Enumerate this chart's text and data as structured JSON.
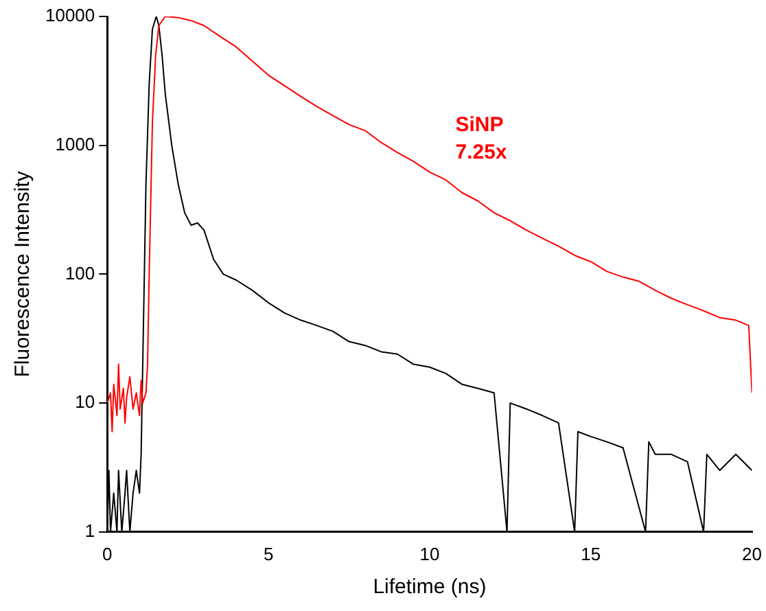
{
  "chart_data": {
    "type": "line",
    "xlabel": "Lifetime (ns)",
    "ylabel": "Fluorescence Intensity",
    "log": "y",
    "xlim": [
      0,
      20
    ],
    "xticks": [
      0,
      5,
      10,
      15,
      20
    ],
    "ylim": [
      1,
      10000
    ],
    "yticks": [
      1,
      10,
      100,
      1000,
      10000
    ],
    "grid": false,
    "legend": false,
    "marker": "none",
    "line_style": "solid",
    "series": [
      {
        "name": "SiNP 7.25x",
        "color": "#ff0000",
        "x": [
          0,
          0.1,
          0.15,
          0.2,
          0.3,
          0.35,
          0.4,
          0.5,
          0.55,
          0.6,
          0.7,
          0.8,
          0.9,
          1.0,
          1.05,
          1.1,
          1.2,
          1.25,
          1.3,
          1.4,
          1.5,
          1.6,
          1.8,
          2.2,
          2.6,
          3,
          3.5,
          4,
          4.5,
          5,
          5.5,
          6,
          6.5,
          7,
          7.5,
          8,
          8.5,
          9,
          9.5,
          10,
          10.5,
          11,
          11.5,
          12,
          12.5,
          13,
          13.5,
          14,
          14.5,
          15,
          15.5,
          16,
          16.5,
          17,
          17.5,
          18,
          18.5,
          19,
          19.5,
          19.9,
          20
        ],
        "values": [
          10,
          12,
          6,
          14,
          8,
          20,
          9,
          13,
          7,
          11,
          16,
          9,
          12,
          8,
          15,
          10,
          12,
          20,
          100,
          1500,
          5000,
          8500,
          10000,
          9800,
          9300,
          8500,
          7000,
          5800,
          4500,
          3500,
          2900,
          2400,
          2000,
          1700,
          1450,
          1300,
          1050,
          880,
          750,
          620,
          540,
          430,
          370,
          300,
          260,
          220,
          190,
          165,
          140,
          125,
          105,
          95,
          88,
          75,
          65,
          58,
          52,
          46,
          44,
          40,
          12
        ]
      },
      {
        "color": "#000000",
        "x": [
          0,
          0.05,
          0.1,
          0.2,
          0.3,
          0.35,
          0.45,
          0.55,
          0.6,
          0.7,
          0.8,
          0.9,
          1.0,
          1.05,
          1.1,
          1.2,
          1.3,
          1.4,
          1.52,
          1.6,
          1.7,
          1.8,
          2.0,
          2.2,
          2.4,
          2.6,
          2.8,
          3.0,
          3.3,
          3.6,
          4,
          4.5,
          5,
          5.5,
          6,
          6.5,
          7,
          7.5,
          8,
          8.5,
          9,
          9.5,
          10,
          10.5,
          11,
          11.5,
          12,
          12.4,
          12.5,
          13,
          13.5,
          14,
          14.5,
          14.6,
          15,
          15.5,
          16,
          16.7,
          16.8,
          17,
          17.5,
          18,
          18.5,
          18.6,
          19,
          19.5,
          20
        ],
        "values": [
          1,
          3,
          1,
          2,
          1,
          3,
          1,
          2,
          3,
          1,
          2,
          3,
          2,
          4,
          20,
          500,
          3000,
          8000,
          10000,
          8500,
          5000,
          2500,
          1000,
          500,
          300,
          240,
          250,
          220,
          130,
          100,
          90,
          75,
          60,
          50,
          44,
          40,
          36,
          30,
          28,
          25,
          24,
          20,
          19,
          17,
          14,
          13,
          12,
          1,
          10,
          9,
          8,
          7,
          1,
          6,
          5.5,
          5,
          4.5,
          1,
          5,
          4,
          4,
          3.5,
          1,
          4,
          3,
          4,
          3
        ]
      }
    ]
  }
}
